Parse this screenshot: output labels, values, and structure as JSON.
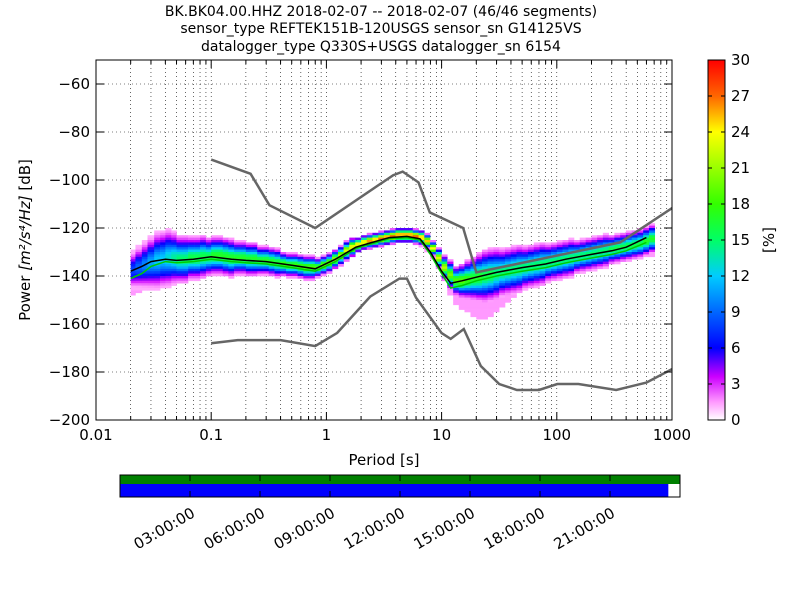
{
  "chart_data": {
    "type": "heatmap",
    "title_lines": [
      "BK.BK04.00.HHZ   2018-02-07 -- 2018-02-07  (46/46 segments)",
      "sensor_type REFTEK151B-120USGS sensor_sn G14125VS",
      "datalogger_type Q330S+USGS datalogger_sn 6154"
    ],
    "xlabel": "Period [s]",
    "ylabel_prefix": "Power ",
    "ylabel_units": "[m²/s⁴/Hz]",
    "ylabel_suffix": " [dB]",
    "x_scale": "log",
    "xlim": [
      0.01,
      1000
    ],
    "ylim": [
      -200,
      -50
    ],
    "x_ticks": [
      0.01,
      0.1,
      1,
      10,
      100,
      1000
    ],
    "x_tick_labels": [
      "0.01",
      "0.1",
      "1",
      "10",
      "100",
      "1000"
    ],
    "y_ticks": [
      -200,
      -180,
      -160,
      -140,
      -120,
      -100,
      -80,
      -60
    ],
    "y_tick_labels": [
      "−200",
      "−180",
      "−160",
      "−140",
      "−120",
      "−100",
      "−80",
      "−60"
    ],
    "grid": "dotted",
    "colorbar": {
      "label": "[%]",
      "min": 0,
      "max": 30,
      "ticks": [
        0,
        3,
        6,
        9,
        12,
        15,
        18,
        21,
        24,
        27,
        30
      ],
      "tick_labels": [
        "0",
        "3",
        "6",
        "9",
        "12",
        "15",
        "18",
        "21",
        "24",
        "27",
        "30"
      ]
    },
    "new_high_noise_model": {
      "x": [
        0.1,
        0.22,
        0.32,
        0.8,
        3.8,
        4.6,
        6.3,
        7.9,
        15.4,
        20,
        354.8,
        10000
      ],
      "y": [
        -91.5,
        -97.4,
        -110.5,
        -120,
        -98,
        -96.5,
        -101,
        -113.5,
        -120,
        -138.5,
        -126,
        -80
      ]
    },
    "new_low_noise_model": {
      "x": [
        0.1,
        0.17,
        0.4,
        0.8,
        1.24,
        2.4,
        4.3,
        5,
        6,
        10,
        12,
        15.6,
        21.9,
        31.6,
        45,
        70,
        101,
        154,
        328,
        600,
        1000
      ],
      "y": [
        -168,
        -166.7,
        -166.7,
        -169.2,
        -163.7,
        -148.6,
        -141.1,
        -141.1,
        -149,
        -163.8,
        -166.2,
        -162.1,
        -177.5,
        -185,
        -187.5,
        -187.5,
        -185,
        -185,
        -187.5,
        -184.4,
        -178.8
      ]
    },
    "median_curve": {
      "x": [
        0.02,
        0.025,
        0.03,
        0.04,
        0.05,
        0.07,
        0.1,
        0.15,
        0.2,
        0.3,
        0.5,
        0.8,
        1.2,
        1.8,
        2.5,
        3.5,
        5,
        6.5,
        8,
        10,
        12,
        15,
        20,
        30,
        50,
        80,
        120,
        200,
        300,
        400,
        600
      ],
      "y": [
        -138,
        -136,
        -134,
        -133,
        -133.5,
        -133,
        -132,
        -133,
        -133.5,
        -134,
        -135.5,
        -137,
        -133,
        -128,
        -126,
        -124,
        -123.5,
        -124.5,
        -130,
        -138,
        -143,
        -142,
        -140.5,
        -138.5,
        -136.5,
        -135,
        -133,
        -131,
        -129.5,
        -128,
        -124
      ]
    },
    "mean_curve": {
      "x": [
        0.02,
        0.025,
        0.03,
        0.04,
        0.05,
        0.07,
        0.1,
        0.15,
        0.2,
        0.3,
        0.5,
        0.8,
        1.2,
        1.8,
        2.5,
        3.5,
        5,
        6.5,
        8,
        10,
        12,
        15,
        20,
        30,
        50,
        80,
        120,
        200,
        300,
        400,
        600
      ],
      "y": [
        -141,
        -139,
        -136,
        -134,
        -134.5,
        -134,
        -133,
        -134,
        -134.5,
        -135,
        -136.5,
        -138,
        -134,
        -128.5,
        -126.5,
        -124.5,
        -124,
        -125,
        -131,
        -139,
        -145,
        -144,
        -142,
        -140,
        -138,
        -136.5,
        -134.5,
        -132.5,
        -131,
        -129.5,
        -126
      ]
    },
    "pdf_columns": {
      "x": [
        0.02,
        0.022,
        0.025,
        0.028,
        0.032,
        0.036,
        0.04,
        0.045,
        0.05,
        0.056,
        0.063,
        0.071,
        0.08,
        0.09,
        0.1,
        0.112,
        0.126,
        0.141,
        0.158,
        0.178,
        0.2,
        0.224,
        0.251,
        0.282,
        0.316,
        0.355,
        0.398,
        0.447,
        0.501,
        0.562,
        0.631,
        0.708,
        0.794,
        0.891,
        1,
        1.12,
        1.26,
        1.41,
        1.58,
        1.78,
        2,
        2.24,
        2.51,
        2.82,
        3.16,
        3.55,
        3.98,
        4.47,
        5.01,
        5.62,
        6.31,
        7.08,
        7.94,
        8.91,
        10,
        11.2,
        12.6,
        14.1,
        15.8,
        17.8,
        20,
        22.4,
        25.1,
        28.2,
        31.6,
        35.5,
        39.8,
        44.7,
        50.1,
        56.2,
        63.1,
        70.8,
        79.4,
        89.1,
        100,
        112,
        126,
        141,
        158,
        178,
        200,
        224,
        251,
        282,
        316,
        355,
        398,
        447,
        501,
        562,
        631
      ],
      "center_db": [
        -138,
        -137,
        -136,
        -135,
        -134,
        -133.5,
        -133,
        -133,
        -133.5,
        -133.5,
        -133,
        -133,
        -132.5,
        -132.5,
        -132,
        -132,
        -132.5,
        -133,
        -133,
        -133,
        -133.5,
        -133.5,
        -134,
        -134,
        -134.5,
        -135,
        -135.5,
        -136,
        -136,
        -136.5,
        -137,
        -137,
        -137,
        -136,
        -135,
        -133.5,
        -132,
        -130,
        -128.5,
        -127.5,
        -126.5,
        -126,
        -125.5,
        -125,
        -124.5,
        -124,
        -123.5,
        -123.5,
        -123.5,
        -124,
        -124.5,
        -126,
        -129,
        -133,
        -137,
        -140,
        -142.5,
        -142.5,
        -142,
        -141.5,
        -141,
        -140.5,
        -140,
        -139.5,
        -139,
        -138.5,
        -138,
        -137.5,
        -137,
        -136.5,
        -136,
        -135.5,
        -135,
        -134.5,
        -134,
        -133.5,
        -133,
        -132.5,
        -132,
        -131.5,
        -131,
        -130.5,
        -130,
        -129.5,
        -129,
        -128.5,
        -128,
        -127.5,
        -127,
        -126,
        -125
      ],
      "spread_db": [
        8,
        9,
        10,
        11,
        12,
        12,
        12,
        11,
        10,
        10,
        9,
        9,
        9,
        8,
        8,
        8,
        8,
        8,
        7,
        7,
        7,
        7,
        6,
        6,
        6,
        6,
        5,
        5,
        5,
        5,
        5,
        5,
        4,
        4,
        4,
        4,
        4,
        4,
        4,
        3,
        3,
        3,
        3,
        3,
        3,
        3,
        3,
        3,
        3,
        3,
        3,
        3,
        3,
        4,
        5,
        6,
        6,
        7,
        8,
        9,
        10,
        11,
        11,
        11,
        10,
        10,
        10,
        10,
        9,
        9,
        9,
        9,
        8,
        8,
        8,
        8,
        8,
        7,
        7,
        7,
        7,
        7,
        7,
        6,
        6,
        6,
        6,
        6,
        6,
        6,
        6
      ],
      "outlier_low_db": [
        -148,
        -147,
        -146,
        -145,
        -142,
        -141,
        -141,
        -141,
        -140,
        -140,
        -140,
        -140,
        -139,
        -139,
        -138,
        -138,
        -138,
        -138,
        -138,
        -138,
        -138,
        -138,
        -138,
        -138,
        -138,
        -138,
        -138,
        -138,
        -139,
        -139,
        -139,
        -140,
        -140,
        -140,
        -139,
        -137,
        -135,
        -132,
        -130,
        -129,
        -128,
        -127,
        -127,
        -126,
        -126,
        -126,
        -126,
        -126,
        -126,
        -127,
        -128,
        -130,
        -133,
        -137,
        -141,
        -148,
        -152,
        -154,
        -155,
        -157,
        -158,
        -158,
        -157,
        -155,
        -153,
        -151,
        -149,
        -147,
        -146,
        -145,
        -144,
        -143,
        -142,
        -141,
        -140,
        -139,
        -138,
        -137,
        -136,
        -136,
        -135,
        -135,
        -134,
        -134,
        -134,
        -133,
        -133,
        -133,
        -133,
        -132,
        -132
      ],
      "peak_percent": [
        8,
        9,
        10,
        11,
        12,
        12,
        13,
        14,
        15,
        15,
        16,
        16,
        16,
        16,
        17,
        17,
        17,
        17,
        17,
        17,
        17,
        17,
        17,
        17,
        17,
        17,
        18,
        18,
        18,
        18,
        19,
        19,
        19,
        20,
        20,
        21,
        22,
        23,
        24,
        25,
        25,
        26,
        26,
        27,
        27,
        27,
        27,
        27,
        27,
        27,
        26,
        25,
        24,
        23,
        22,
        20,
        19,
        19,
        18,
        17,
        17,
        16,
        16,
        15,
        15,
        15,
        15,
        15,
        15,
        15,
        15,
        15,
        15,
        15,
        15,
        15,
        15,
        15,
        15,
        15,
        15,
        15,
        15,
        16,
        16,
        16,
        16,
        16,
        16,
        17,
        17
      ]
    },
    "time_axis": {
      "tick_labels": [
        "03:00:00",
        "06:00:00",
        "09:00:00",
        "12:00:00",
        "15:00:00",
        "18:00:00",
        "21:00:00"
      ],
      "tick_hours": [
        3,
        6,
        9,
        12,
        15,
        18,
        21
      ],
      "start_hour": 0,
      "end_hour": 24,
      "data_coverage_hours": [
        0,
        24
      ],
      "used_coverage_hours": [
        0,
        23.5
      ],
      "data_color": "#008000",
      "used_color": "#0000ff"
    },
    "colors": {
      "noise_models": "#666666",
      "median": "#000000",
      "mean": "#00cc00"
    }
  }
}
